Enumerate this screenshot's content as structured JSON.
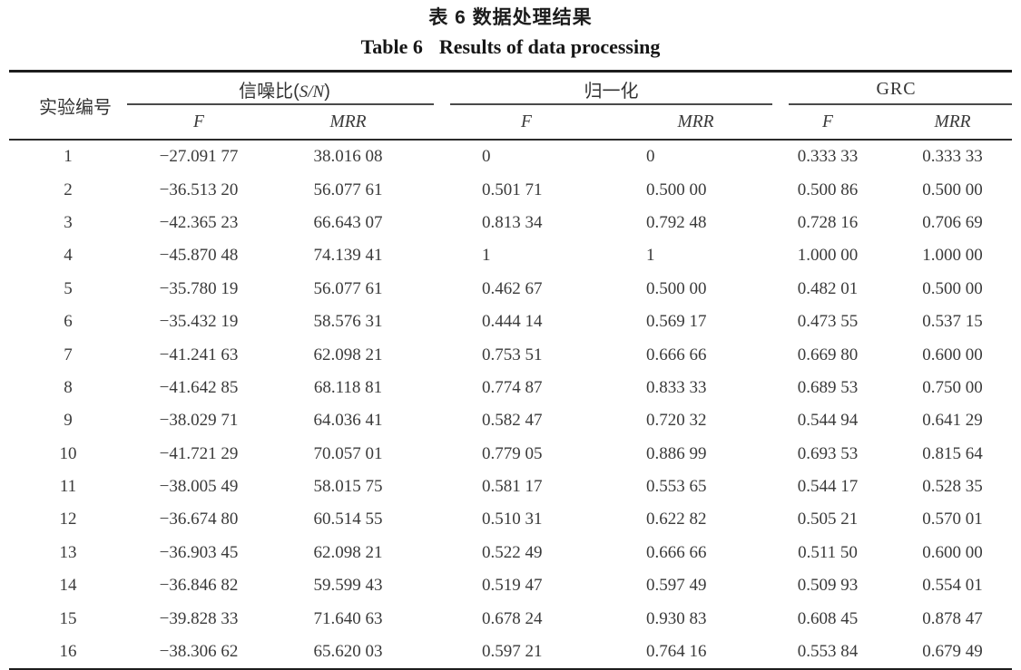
{
  "page": {
    "background": "#ffffff",
    "text_color": "#3a3a3a",
    "rule_color": "#1d1d1d"
  },
  "caption": {
    "zh": "表 6 数据处理结果",
    "en_label": "Table 6",
    "en_title": "Results of data processing"
  },
  "table": {
    "row_header": "实验编号",
    "groups": [
      {
        "label_prefix": "信噪比(",
        "label_italic": "S/N",
        "label_suffix": ")"
      },
      {
        "label": "归一化"
      },
      {
        "label": "GRC"
      }
    ],
    "sub_headers": {
      "f": "F",
      "mrr": "MRR"
    },
    "columns": [
      "实验编号",
      "信噪比(S/N) F",
      "信噪比(S/N) MRR",
      "归一化 F",
      "归一化 MRR",
      "GRC F",
      "GRC MRR"
    ],
    "rows": [
      [
        "1",
        "−27.091 77",
        "38.016 08",
        "0",
        "0",
        "0.333 33",
        "0.333 33"
      ],
      [
        "2",
        "−36.513 20",
        "56.077 61",
        "0.501 71",
        "0.500 00",
        "0.500 86",
        "0.500 00"
      ],
      [
        "3",
        "−42.365 23",
        "66.643 07",
        "0.813 34",
        "0.792 48",
        "0.728 16",
        "0.706 69"
      ],
      [
        "4",
        "−45.870 48",
        "74.139 41",
        "1",
        "1",
        "1.000 00",
        "1.000 00"
      ],
      [
        "5",
        "−35.780 19",
        "56.077 61",
        "0.462 67",
        "0.500 00",
        "0.482 01",
        "0.500 00"
      ],
      [
        "6",
        "−35.432 19",
        "58.576 31",
        "0.444 14",
        "0.569 17",
        "0.473 55",
        "0.537 15"
      ],
      [
        "7",
        "−41.241 63",
        "62.098 21",
        "0.753 51",
        "0.666 66",
        "0.669 80",
        "0.600 00"
      ],
      [
        "8",
        "−41.642 85",
        "68.118 81",
        "0.774 87",
        "0.833 33",
        "0.689 53",
        "0.750 00"
      ],
      [
        "9",
        "−38.029 71",
        "64.036 41",
        "0.582 47",
        "0.720 32",
        "0.544 94",
        "0.641 29"
      ],
      [
        "10",
        "−41.721 29",
        "70.057 01",
        "0.779 05",
        "0.886 99",
        "0.693 53",
        "0.815 64"
      ],
      [
        "11",
        "−38.005 49",
        "58.015 75",
        "0.581 17",
        "0.553 65",
        "0.544 17",
        "0.528 35"
      ],
      [
        "12",
        "−36.674 80",
        "60.514 55",
        "0.510 31",
        "0.622 82",
        "0.505 21",
        "0.570 01"
      ],
      [
        "13",
        "−36.903 45",
        "62.098 21",
        "0.522 49",
        "0.666 66",
        "0.511 50",
        "0.600 00"
      ],
      [
        "14",
        "−36.846 82",
        "59.599 43",
        "0.519 47",
        "0.597 49",
        "0.509 93",
        "0.554 01"
      ],
      [
        "15",
        "−39.828 33",
        "71.640 63",
        "0.678 24",
        "0.930 83",
        "0.608 45",
        "0.878 47"
      ],
      [
        "16",
        "−38.306 62",
        "65.620 03",
        "0.597 21",
        "0.764 16",
        "0.553 84",
        "0.679 49"
      ]
    ]
  }
}
